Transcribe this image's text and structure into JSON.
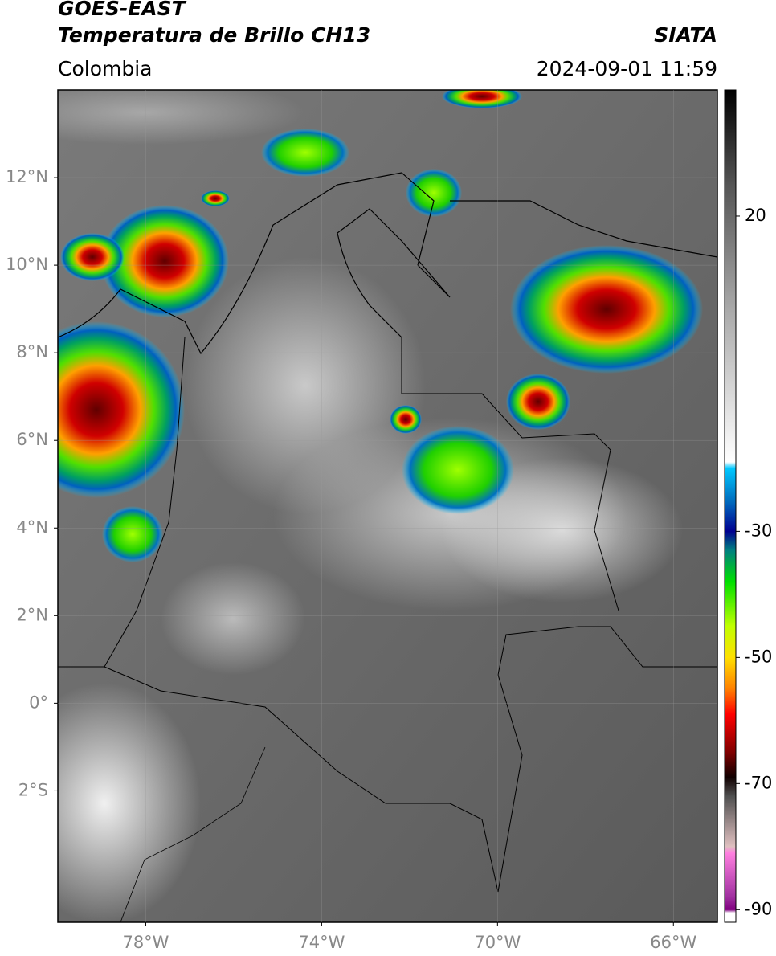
{
  "header": {
    "title": "GOES-EAST",
    "subtitle": "Temperatura de Brillo CH13",
    "source": "SIATA",
    "region": "Colombia",
    "datetime": "2024-09-01 11:59"
  },
  "map": {
    "lonlim": [
      -80,
      -65
    ],
    "latlim": [
      -5,
      14
    ],
    "lonticks": [
      {
        "value": -78,
        "label": "78°W"
      },
      {
        "value": -74,
        "label": "74°W"
      },
      {
        "value": -70,
        "label": "70°W"
      },
      {
        "value": -66,
        "label": "66°W"
      }
    ],
    "latticks": [
      {
        "value": 12,
        "label": "12°N"
      },
      {
        "value": 10,
        "label": "10°N"
      },
      {
        "value": 8,
        "label": "8°N"
      },
      {
        "value": 6,
        "label": "6°N"
      },
      {
        "value": 4,
        "label": "4°N"
      },
      {
        "value": 2,
        "label": "2°N"
      },
      {
        "value": 0,
        "label": "0°"
      },
      {
        "value": -2,
        "label": "2°S"
      }
    ],
    "grid": true
  },
  "colorbar": {
    "lim": [
      -92,
      40
    ],
    "ticks": [
      20,
      -30,
      -50,
      -70,
      -90
    ],
    "stops": [
      {
        "value": 40,
        "color": "#000000"
      },
      {
        "value": 25,
        "color": "#555555"
      },
      {
        "value": 5,
        "color": "#aaaaaa"
      },
      {
        "value": -19,
        "color": "#ffffff"
      },
      {
        "value": -20,
        "color": "#00c8ff"
      },
      {
        "value": -25,
        "color": "#0070c0"
      },
      {
        "value": -30,
        "color": "#000090"
      },
      {
        "value": -33,
        "color": "#008080"
      },
      {
        "value": -38,
        "color": "#00e000"
      },
      {
        "value": -45,
        "color": "#c0ff00"
      },
      {
        "value": -50,
        "color": "#ffe000"
      },
      {
        "value": -55,
        "color": "#ff8000"
      },
      {
        "value": -59,
        "color": "#ff0000"
      },
      {
        "value": -65,
        "color": "#800000"
      },
      {
        "value": -69,
        "color": "#100000"
      },
      {
        "value": -72,
        "color": "#505050"
      },
      {
        "value": -80,
        "color": "#e0c0c0"
      },
      {
        "value": -81,
        "color": "#ff80e0"
      },
      {
        "value": -88,
        "color": "#a030a0"
      },
      {
        "value": -90,
        "color": "#800080"
      },
      {
        "value": -90.5,
        "color": "#ffffff"
      }
    ]
  }
}
